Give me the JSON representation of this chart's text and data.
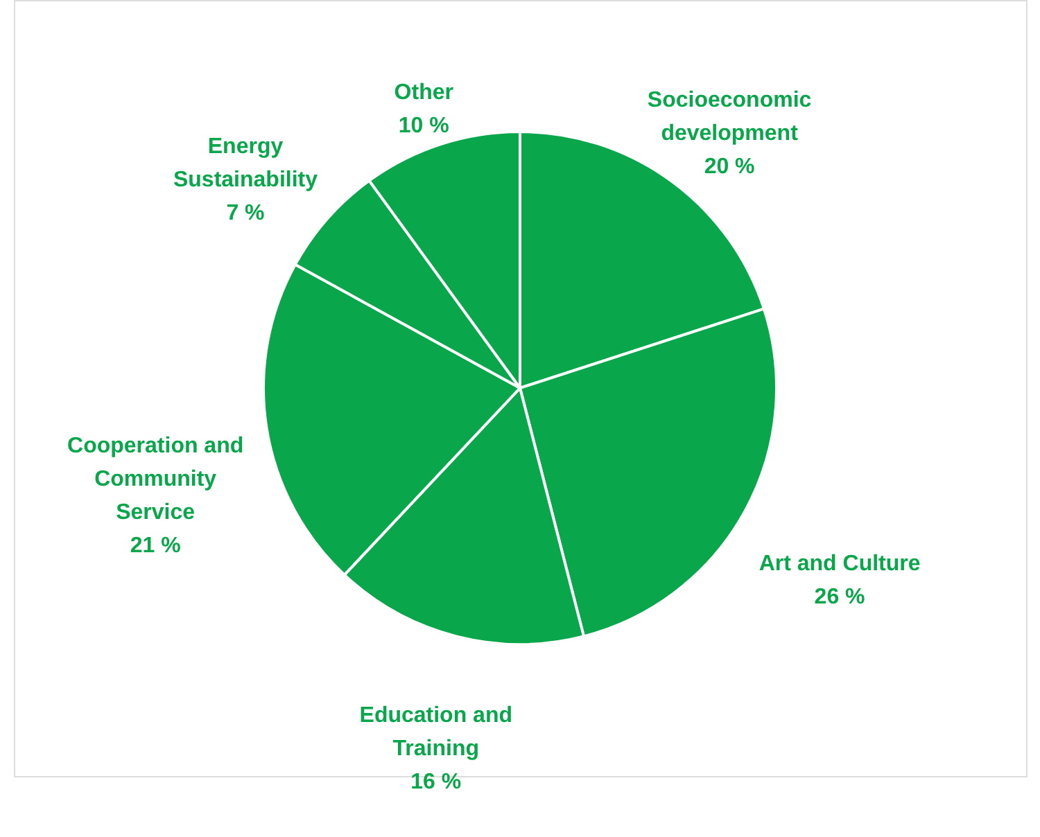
{
  "chart_data": {
    "type": "pie",
    "categories": [
      "Socioeconomic development",
      "Art and Culture",
      "Education and Training",
      "Cooperation and Community Service",
      "Energy Sustainability",
      "Other"
    ],
    "values": [
      20,
      26,
      16,
      21,
      7,
      10
    ],
    "value_labels": [
      "20 %",
      "26 %",
      "16 %",
      "21 %",
      "7 %",
      "10 %"
    ],
    "colors": [
      "#09a64b",
      "#09a64b",
      "#09a64b",
      "#09a64b",
      "#09a64b",
      "#09a64b"
    ]
  }
}
